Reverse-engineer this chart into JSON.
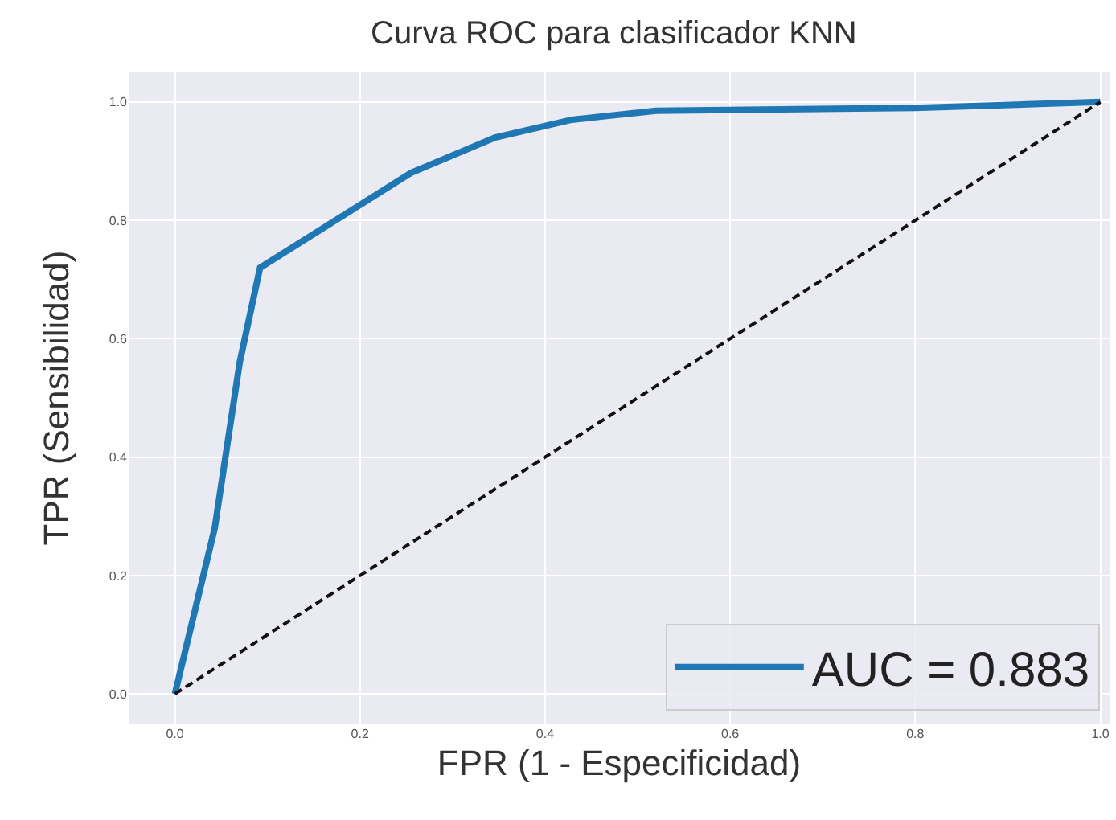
{
  "chart_data": {
    "type": "line",
    "title": "Curva ROC para clasificador KNN",
    "xlabel": "FPR (1 - Especificidad)",
    "ylabel": "TPR (Sensibilidad)",
    "series": [
      {
        "name": "AUC = 0.883",
        "color": "#1f77b4",
        "x": [
          0,
          0.043,
          0.07,
          0.092,
          0.255,
          0.346,
          0.429,
          0.52,
          0.8,
          1
        ],
        "values": [
          0,
          0.28,
          0.56,
          0.72,
          0.88,
          0.94,
          0.97,
          0.985,
          0.99,
          1
        ],
        "line_style": "solid"
      },
      {
        "color": "#111111",
        "x": [
          0,
          1
        ],
        "values": [
          0,
          1
        ],
        "line_style": "dashed"
      }
    ],
    "xlim": [
      -0.05,
      1.01
    ],
    "ylim": [
      -0.05,
      1.05
    ],
    "xticks": [
      {
        "value": 0,
        "label": "0.0"
      },
      {
        "value": 0.2,
        "label": "0.2"
      },
      {
        "value": 0.4,
        "label": "0.4"
      },
      {
        "value": 0.6,
        "label": "0.6"
      },
      {
        "value": 0.8,
        "label": "0.8"
      },
      {
        "value": 1,
        "label": "1.0"
      }
    ],
    "yticks": [
      {
        "value": 0,
        "label": "0.0"
      },
      {
        "value": 0.2,
        "label": "0.2"
      },
      {
        "value": 0.4,
        "label": "0.4"
      },
      {
        "value": 0.6,
        "label": "0.6"
      },
      {
        "value": 0.8,
        "label": "0.8"
      },
      {
        "value": 1,
        "label": "1.0"
      }
    ],
    "grid": true,
    "legend": "bottom right",
    "marker": "none"
  }
}
